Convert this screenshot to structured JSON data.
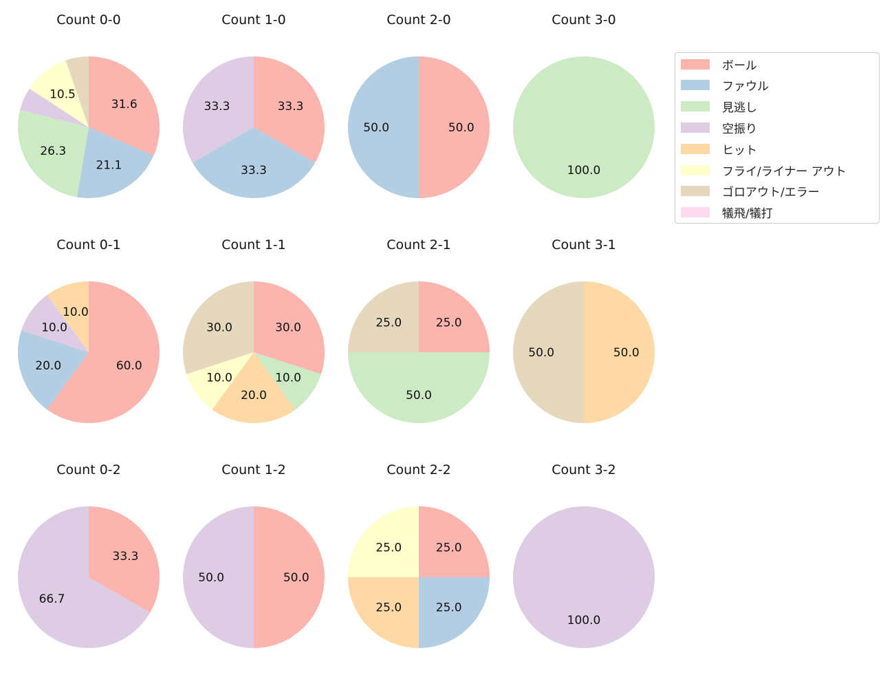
{
  "chart_data": {
    "type": "pie",
    "layout": {
      "rows": 3,
      "cols": 4,
      "start_angle": 90,
      "direction": "clockwise",
      "label_format": "%.1f"
    },
    "legend": {
      "position": "upper right",
      "entries": [
        {
          "label": "ボール",
          "color": "#fbb4ae"
        },
        {
          "label": "ファウル",
          "color": "#b3cde3"
        },
        {
          "label": "見逃し",
          "color": "#ccebc5"
        },
        {
          "label": "空振り",
          "color": "#decbe4"
        },
        {
          "label": "ヒット",
          "color": "#fed9a6"
        },
        {
          "label": "フライ/ライナー アウト",
          "color": "#ffffcc"
        },
        {
          "label": "ゴロアウト/エラー",
          "color": "#e5d8bd"
        },
        {
          "label": "犠飛/犠打",
          "color": "#fddaec"
        }
      ]
    },
    "categories": [
      "ボール",
      "ファウル",
      "見逃し",
      "空振り",
      "ヒット",
      "フライ/ライナー アウト",
      "ゴロアウト/エラー",
      "犠飛/犠打"
    ],
    "pies": [
      {
        "title": "Count 0-0",
        "row": 0,
        "col": 0,
        "values": [
          31.6,
          21.1,
          26.3,
          5.3,
          0,
          10.5,
          5.3,
          0
        ],
        "labels": [
          "31.6",
          "21.1",
          "26.3",
          "",
          "",
          "10.5",
          "",
          ""
        ]
      },
      {
        "title": "Count 1-0",
        "row": 0,
        "col": 1,
        "values": [
          33.3,
          33.3,
          0,
          33.3,
          0,
          0,
          0,
          0
        ],
        "labels": [
          "33.3",
          "33.3",
          "",
          "33.3",
          "",
          "",
          "",
          ""
        ]
      },
      {
        "title": "Count 2-0",
        "row": 0,
        "col": 2,
        "values": [
          50.0,
          50.0,
          0,
          0,
          0,
          0,
          0,
          0
        ],
        "labels": [
          "50.0",
          "50.0",
          "",
          "",
          "",
          "",
          "",
          ""
        ]
      },
      {
        "title": "Count 3-0",
        "row": 0,
        "col": 3,
        "values": [
          0,
          0,
          100.0,
          0,
          0,
          0,
          0,
          0
        ],
        "labels": [
          "",
          "",
          "100.0",
          "",
          "",
          "",
          "",
          ""
        ]
      },
      {
        "title": "Count 0-1",
        "row": 1,
        "col": 0,
        "values": [
          60.0,
          20.0,
          0,
          10.0,
          10.0,
          0,
          0,
          0
        ],
        "labels": [
          "60.0",
          "20.0",
          "",
          "10.0",
          "10.0",
          "",
          "",
          ""
        ]
      },
      {
        "title": "Count 1-1",
        "row": 1,
        "col": 1,
        "values": [
          30.0,
          0,
          10.0,
          0,
          20.0,
          10.0,
          30.0,
          0
        ],
        "labels": [
          "30.0",
          "",
          "10.0",
          "",
          "20.0",
          "10.0",
          "30.0",
          ""
        ]
      },
      {
        "title": "Count 2-1",
        "row": 1,
        "col": 2,
        "values": [
          25.0,
          0,
          50.0,
          0,
          0,
          0,
          25.0,
          0
        ],
        "labels": [
          "25.0",
          "",
          "50.0",
          "",
          "",
          "",
          "25.0",
          ""
        ]
      },
      {
        "title": "Count 3-1",
        "row": 1,
        "col": 3,
        "values": [
          0,
          0,
          0,
          0,
          50.0,
          0,
          50.0,
          0
        ],
        "labels": [
          "",
          "",
          "",
          "",
          "50.0",
          "",
          "50.0",
          ""
        ]
      },
      {
        "title": "Count 0-2",
        "row": 2,
        "col": 0,
        "values": [
          33.3,
          0,
          0,
          66.7,
          0,
          0,
          0,
          0
        ],
        "labels": [
          "33.3",
          "",
          "",
          "66.7",
          "",
          "",
          "",
          ""
        ]
      },
      {
        "title": "Count 1-2",
        "row": 2,
        "col": 1,
        "values": [
          50.0,
          0,
          0,
          50.0,
          0,
          0,
          0,
          0
        ],
        "labels": [
          "50.0",
          "",
          "",
          "50.0",
          "",
          "",
          "",
          ""
        ]
      },
      {
        "title": "Count 2-2",
        "row": 2,
        "col": 2,
        "values": [
          25.0,
          25.0,
          0,
          0,
          25.0,
          25.0,
          0,
          0
        ],
        "labels": [
          "25.0",
          "25.0",
          "",
          "",
          "25.0",
          "25.0",
          "",
          ""
        ]
      },
      {
        "title": "Count 3-2",
        "row": 2,
        "col": 3,
        "values": [
          0,
          0,
          0,
          100.0,
          0,
          0,
          0,
          0
        ],
        "labels": [
          "",
          "",
          "",
          "100.0",
          "",
          "",
          "",
          ""
        ]
      }
    ]
  }
}
